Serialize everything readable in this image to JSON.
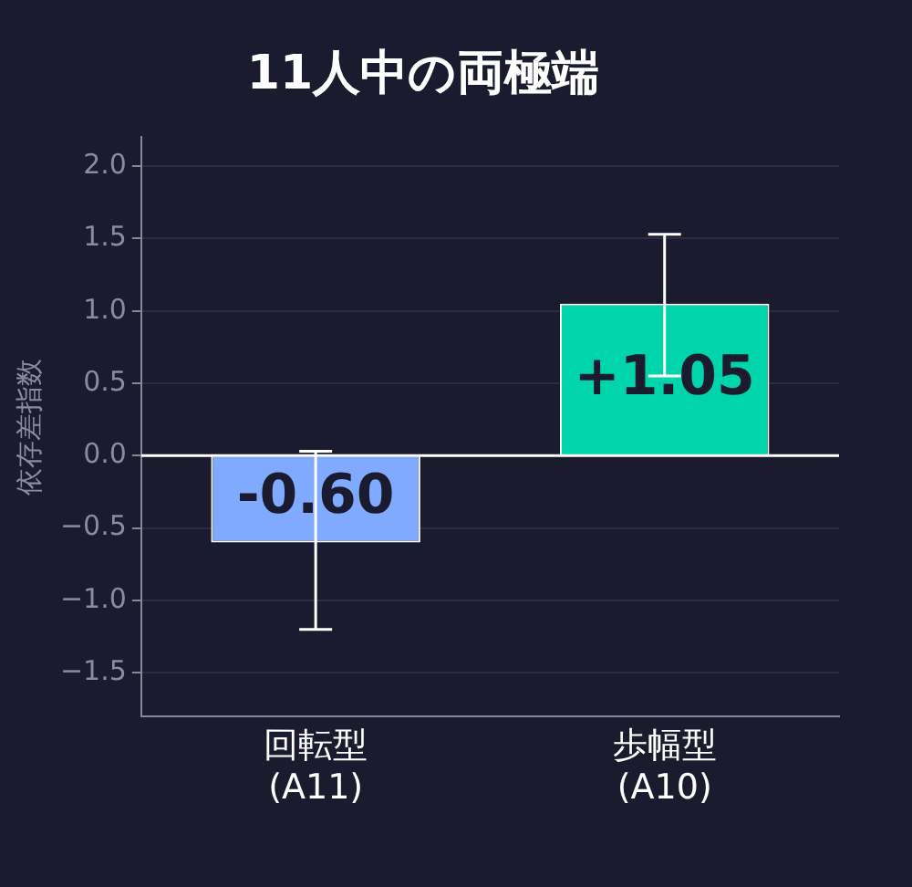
{
  "chart_data": {
    "type": "bar",
    "title": "11人中の両極端",
    "ylabel": "依存差指数",
    "categories": [
      "回転型\n(A11)",
      "歩幅型\n(A10)"
    ],
    "values": [
      -0.6,
      1.05
    ],
    "colors": [
      "#7faaff",
      "#00d4aa"
    ],
    "errors": [
      [
        -1.2,
        0.03
      ],
      [
        0.55,
        1.53
      ]
    ],
    "value_labels": [
      "-0.60",
      "+1.05"
    ],
    "ylim": [
      -1.8,
      2.2
    ],
    "yticks": [
      {
        "value": -1.5,
        "label": "−1.5"
      },
      {
        "value": -1.0,
        "label": "−1.0"
      },
      {
        "value": -0.5,
        "label": "−0.5"
      },
      {
        "value": 0.0,
        "label": "0.0"
      },
      {
        "value": 0.5,
        "label": "0.5"
      },
      {
        "value": 1.0,
        "label": "1.0"
      },
      {
        "value": 1.5,
        "label": "1.5"
      },
      {
        "value": 2.0,
        "label": "2.0"
      }
    ],
    "ref_lines": [
      {
        "axis": "y",
        "value": 0,
        "color": "#ffffff"
      }
    ],
    "grid": "y"
  }
}
